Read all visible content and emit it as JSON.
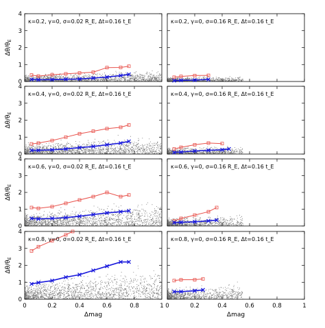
{
  "figure": {
    "ylabel": "Δθ / θ_E",
    "ylabel_main": "Δθ/θ",
    "ylabel_sub": "E",
    "xlabel": "Δmag"
  },
  "styles": {
    "scatter_color": "#000000",
    "red_color": "#e8504a",
    "blue_color": "#1a1adc"
  },
  "chart_data": [
    {
      "type": "scatter",
      "annotation": "κ=0.2, γ=0, σ=0.02 R_E, Δt=0.16 t_E",
      "xlim": [
        0,
        1
      ],
      "ylim": [
        0,
        4
      ],
      "xticks": [
        "0",
        "0.2",
        "0.4",
        "0.6",
        "0.8",
        "1"
      ],
      "yticks": [
        "0",
        "1",
        "2",
        "3",
        "4"
      ],
      "series": [
        {
          "marker": "square",
          "color": "red",
          "x": [
            0.05,
            0.1,
            0.2,
            0.3,
            0.4,
            0.5,
            0.6,
            0.7,
            0.76
          ],
          "y": [
            0.38,
            0.32,
            0.4,
            0.45,
            0.5,
            0.55,
            0.82,
            0.83,
            0.9
          ]
        },
        {
          "marker": "cross",
          "color": "blue",
          "x": [
            0.05,
            0.1,
            0.2,
            0.3,
            0.4,
            0.5,
            0.6,
            0.7,
            0.76
          ],
          "y": [
            0.12,
            0.1,
            0.11,
            0.13,
            0.15,
            0.2,
            0.26,
            0.35,
            0.42
          ]
        }
      ]
    },
    {
      "type": "scatter",
      "annotation": "κ=0.2, γ=0, σ=0.16 R_E, Δt=0.16 t_E",
      "xlim": [
        0,
        1
      ],
      "ylim": [
        0,
        4
      ],
      "xticks": [
        "0",
        "0.2",
        "0.4",
        "0.6",
        "0.8",
        "1"
      ],
      "yticks": [
        "0",
        "1",
        "2",
        "3",
        "4"
      ],
      "series": [
        {
          "marker": "square",
          "color": "red",
          "x": [
            0.05,
            0.1,
            0.2,
            0.3
          ],
          "y": [
            0.25,
            0.3,
            0.35,
            0.36
          ]
        },
        {
          "marker": "cross",
          "color": "blue",
          "x": [
            0.05,
            0.1,
            0.2,
            0.3
          ],
          "y": [
            0.05,
            0.07,
            0.08,
            0.12
          ]
        }
      ]
    },
    {
      "type": "scatter",
      "annotation": "κ=0.4, γ=0, σ=0.02 R_E, Δt=0.16 t_E",
      "xlim": [
        0,
        1
      ],
      "ylim": [
        0,
        4
      ],
      "xticks": [
        "0",
        "0.2",
        "0.4",
        "0.6",
        "0.8",
        "1"
      ],
      "yticks": [
        "0",
        "1",
        "2",
        "3",
        "4"
      ],
      "series": [
        {
          "marker": "square",
          "color": "red",
          "x": [
            0.05,
            0.1,
            0.2,
            0.3,
            0.4,
            0.5,
            0.6,
            0.7,
            0.76
          ],
          "y": [
            0.6,
            0.65,
            0.8,
            1.0,
            1.2,
            1.35,
            1.5,
            1.58,
            1.72
          ]
        },
        {
          "marker": "cross",
          "color": "blue",
          "x": [
            0.05,
            0.1,
            0.2,
            0.3,
            0.4,
            0.5,
            0.6,
            0.7,
            0.76
          ],
          "y": [
            0.22,
            0.22,
            0.25,
            0.3,
            0.38,
            0.45,
            0.55,
            0.65,
            0.75
          ]
        }
      ]
    },
    {
      "type": "scatter",
      "annotation": "κ=0.4, γ=0, σ=0.16 R_E, Δt=0.16 t_E",
      "xlim": [
        0,
        1
      ],
      "ylim": [
        0,
        4
      ],
      "xticks": [
        "0",
        "0.2",
        "0.4",
        "0.6",
        "0.8",
        "1"
      ],
      "yticks": [
        "0",
        "1",
        "2",
        "3",
        "4"
      ],
      "series": [
        {
          "marker": "square",
          "color": "red",
          "x": [
            0.05,
            0.1,
            0.2,
            0.3,
            0.4
          ],
          "y": [
            0.3,
            0.4,
            0.55,
            0.65,
            0.62
          ]
        },
        {
          "marker": "cross",
          "color": "blue",
          "x": [
            0.05,
            0.1,
            0.2,
            0.3,
            0.4,
            0.45
          ],
          "y": [
            0.1,
            0.12,
            0.18,
            0.22,
            0.25,
            0.3
          ]
        }
      ]
    },
    {
      "type": "scatter",
      "annotation": "κ=0.6, γ=0, σ=0.02 R_E, Δt=0.16 t_E",
      "xlim": [
        0,
        1
      ],
      "ylim": [
        0,
        4
      ],
      "xticks": [
        "0",
        "0.2",
        "0.4",
        "0.6",
        "0.8",
        "1"
      ],
      "yticks": [
        "0",
        "1",
        "2",
        "3",
        "4"
      ],
      "series": [
        {
          "marker": "square",
          "color": "red",
          "x": [
            0.05,
            0.1,
            0.2,
            0.3,
            0.4,
            0.5,
            0.6,
            0.7,
            0.76
          ],
          "y": [
            1.1,
            1.05,
            1.15,
            1.35,
            1.55,
            1.75,
            2.0,
            1.75,
            1.85
          ]
        },
        {
          "marker": "cross",
          "color": "blue",
          "x": [
            0.05,
            0.1,
            0.2,
            0.3,
            0.4,
            0.5,
            0.6,
            0.7,
            0.76
          ],
          "y": [
            0.45,
            0.42,
            0.45,
            0.5,
            0.58,
            0.68,
            0.78,
            0.85,
            0.9
          ]
        }
      ]
    },
    {
      "type": "scatter",
      "annotation": "κ=0.6, γ=0, σ=0.16 R_E, Δt=0.16 t_E",
      "xlim": [
        0,
        1
      ],
      "ylim": [
        0,
        4
      ],
      "xticks": [
        "0",
        "0.2",
        "0.4",
        "0.6",
        "0.8",
        "1"
      ],
      "yticks": [
        "0",
        "1",
        "2",
        "3",
        "4"
      ],
      "series": [
        {
          "marker": "square",
          "color": "red",
          "x": [
            0.05,
            0.1,
            0.2,
            0.3,
            0.36
          ],
          "y": [
            0.3,
            0.45,
            0.65,
            0.85,
            1.1
          ]
        },
        {
          "marker": "cross",
          "color": "blue",
          "x": [
            0.05,
            0.1,
            0.2,
            0.3,
            0.36
          ],
          "y": [
            0.2,
            0.22,
            0.25,
            0.3,
            0.35
          ]
        }
      ]
    },
    {
      "type": "scatter",
      "annotation": "κ=0.8, γ=0, σ=0.02 R_E, Δt=0.16 t_E",
      "xlim": [
        0,
        1
      ],
      "ylim": [
        0,
        4
      ],
      "xticks": [
        "0",
        "0.2",
        "0.4",
        "0.6",
        "0.8",
        "1"
      ],
      "yticks": [
        "0",
        "1",
        "2",
        "3",
        "4"
      ],
      "series": [
        {
          "marker": "square",
          "color": "red",
          "x": [
            0.05,
            0.1,
            0.2,
            0.3,
            0.35
          ],
          "y": [
            2.85,
            3.1,
            3.45,
            3.8,
            4.0
          ]
        },
        {
          "marker": "cross",
          "color": "blue",
          "x": [
            0.05,
            0.1,
            0.2,
            0.3,
            0.4,
            0.5,
            0.6,
            0.7,
            0.76
          ],
          "y": [
            0.9,
            0.98,
            1.1,
            1.3,
            1.45,
            1.7,
            1.95,
            2.2,
            2.2
          ]
        }
      ]
    },
    {
      "type": "scatter",
      "annotation": "κ=0.8, γ=0, σ=0.16 R_E, Δt=0.16 t_E",
      "xlim": [
        0,
        1
      ],
      "ylim": [
        0,
        4
      ],
      "xticks": [
        "0",
        "0.2",
        "0.4",
        "0.6",
        "0.8",
        "1"
      ],
      "yticks": [
        "0",
        "1",
        "2",
        "3",
        "4"
      ],
      "series": [
        {
          "marker": "square",
          "color": "red",
          "x": [
            0.05,
            0.1,
            0.2,
            0.26
          ],
          "y": [
            1.1,
            1.15,
            1.15,
            1.2
          ]
        },
        {
          "marker": "cross",
          "color": "blue",
          "x": [
            0.05,
            0.1,
            0.2,
            0.26
          ],
          "y": [
            0.45,
            0.45,
            0.5,
            0.55
          ]
        }
      ]
    }
  ]
}
